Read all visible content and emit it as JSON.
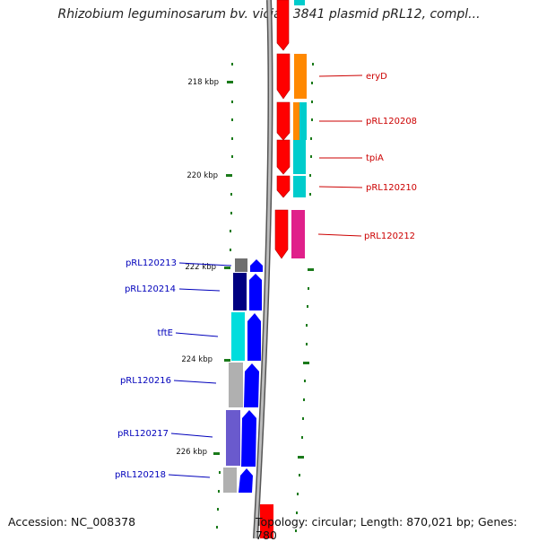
{
  "title": "Rhizobium leguminosarum bv. viciae 3841 plasmid pRL12, compl...",
  "footer": {
    "accession": "Accession: NC_008378",
    "topology": "Topology: circular; Length: 870,021 bp; Genes: 780"
  },
  "colors": {
    "backbone": "#8a8a8a",
    "tick": "#1a7a1a",
    "right_label": "#cc0000",
    "left_label": "#0000bb",
    "red": "#ff0000",
    "orange": "#ff8800",
    "cyan": "#00cccc",
    "magenta": "#e0208a",
    "blue": "#0000ff",
    "navy": "#000080",
    "slate": "#6a5acd",
    "gray": "#b0b0b0",
    "darkgray": "#707070"
  },
  "scale_labels": [
    "218 kbp",
    "220 kbp",
    "222 kbp",
    "224 kbp",
    "226 kbp"
  ],
  "genes_right": [
    {
      "label": "eryD"
    },
    {
      "label": "pRL120208"
    },
    {
      "label": "tpiA"
    },
    {
      "label": "pRL120210"
    },
    {
      "label": "pRL120212"
    }
  ],
  "genes_left": [
    {
      "label": "pRL120213"
    },
    {
      "label": "pRL120214"
    },
    {
      "label": "tftE"
    },
    {
      "label": "pRL120216"
    },
    {
      "label": "pRL120217"
    },
    {
      "label": "pRL120218"
    }
  ]
}
